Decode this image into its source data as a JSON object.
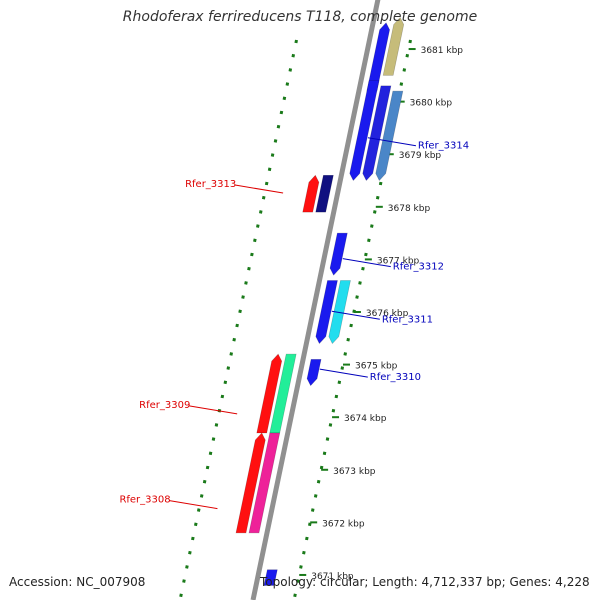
{
  "title": "Rhodoferax ferrireducens T118, complete genome",
  "footer": {
    "accession": "Accession: NC_007908",
    "summary": "Topology: circular; Length: 4,712,337 bp; Genes: 4,228"
  },
  "colors": {
    "backbone": "#909090",
    "tick": "#1a7a1a",
    "label_left": "#dd0000",
    "label_right": "#0000bb",
    "kbp_text": "#222222"
  },
  "ruler": {
    "labels": [
      "3681 kbp",
      "3680 kbp",
      "3679 kbp",
      "3678 kbp",
      "3677 kbp",
      "3676 kbp",
      "3675 kbp",
      "3674 kbp",
      "3673 kbp",
      "3672 kbp",
      "3671 kbp"
    ]
  },
  "genes": [
    {
      "id": "g3681",
      "start": 3680.2,
      "end": 3681.5,
      "strand": "plus",
      "lane": 1,
      "color": "#1a1aee",
      "direction": "up"
    },
    {
      "id": "g3681b",
      "start": 3680.5,
      "end": 3681.6,
      "strand": "plus",
      "lane": 2,
      "color": "#c6bc7a",
      "direction": "up"
    },
    {
      "id": "g3680a",
      "start": 3678.5,
      "end": 3680.4,
      "strand": "plus",
      "lane": 1,
      "color": "#1a1aee",
      "direction": "down"
    },
    {
      "id": "g3680b",
      "start": 3678.5,
      "end": 3680.3,
      "strand": "plus",
      "lane": 2,
      "color": "#2222dd",
      "direction": "down"
    },
    {
      "id": "g3680c",
      "start": 3678.5,
      "end": 3680.2,
      "strand": "plus",
      "lane": 3,
      "color": "#4a86c8",
      "direction": "down"
    },
    {
      "id": "g3313a",
      "start": 3677.9,
      "end": 3678.6,
      "strand": "minus",
      "lane": 1,
      "color": "#101080",
      "direction": "none"
    },
    {
      "id": "g3313b",
      "start": 3677.9,
      "end": 3678.6,
      "strand": "minus",
      "lane": 2,
      "color": "#ff1010",
      "direction": "up"
    },
    {
      "id": "g3312",
      "start": 3676.7,
      "end": 3677.5,
      "strand": "plus",
      "lane": 1,
      "color": "#1a1aee",
      "direction": "down"
    },
    {
      "id": "g3311a",
      "start": 3675.4,
      "end": 3676.6,
      "strand": "plus",
      "lane": 1,
      "color": "#1a1aee",
      "direction": "down"
    },
    {
      "id": "g3311b",
      "start": 3675.4,
      "end": 3676.6,
      "strand": "plus",
      "lane": 2,
      "color": "#22ddee",
      "direction": "down"
    },
    {
      "id": "g3310",
      "start": 3674.6,
      "end": 3675.1,
      "strand": "plus",
      "lane": 1,
      "color": "#1a1aee",
      "direction": "down"
    },
    {
      "id": "g3309a",
      "start": 3673.7,
      "end": 3675.2,
      "strand": "minus",
      "lane": 1,
      "color": "#22ee99",
      "direction": "none"
    },
    {
      "id": "g3309b",
      "start": 3673.7,
      "end": 3675.2,
      "strand": "minus",
      "lane": 2,
      "color": "#ff1010",
      "direction": "up"
    },
    {
      "id": "g3308a",
      "start": 3671.8,
      "end": 3673.7,
      "strand": "minus",
      "lane": 1,
      "color": "#ee2299",
      "direction": "none"
    },
    {
      "id": "g3308b",
      "start": 3671.8,
      "end": 3673.7,
      "strand": "minus",
      "lane": 2,
      "color": "#ff1010",
      "direction": "up"
    },
    {
      "id": "gbottom",
      "start": 3670.8,
      "end": 3671.1,
      "strand": "plus",
      "lane": 1,
      "color": "#1a1aee",
      "direction": "none"
    }
  ],
  "labels": [
    {
      "text": "Rfer_3314",
      "side": "right",
      "pos": 3679.2
    },
    {
      "text": "Rfer_3313",
      "side": "left",
      "pos": 3678.3
    },
    {
      "text": "Rfer_3312",
      "side": "right",
      "pos": 3676.9
    },
    {
      "text": "Rfer_3311",
      "side": "right",
      "pos": 3675.9
    },
    {
      "text": "Rfer_3310",
      "side": "right",
      "pos": 3674.8
    },
    {
      "text": "Rfer_3309",
      "side": "left",
      "pos": 3674.1
    },
    {
      "text": "Rfer_3308",
      "side": "left",
      "pos": 3672.3
    }
  ]
}
